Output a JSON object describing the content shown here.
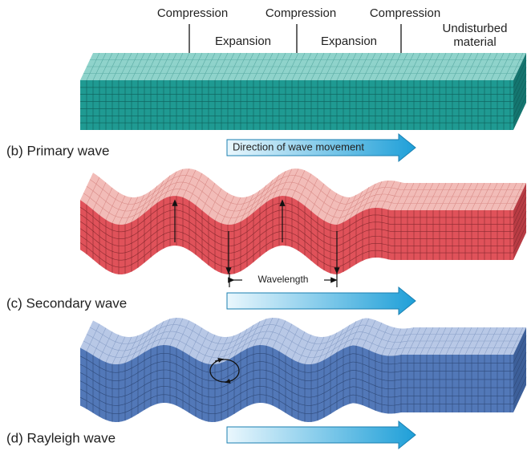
{
  "header": {
    "compression_labels": [
      "Compression",
      "Compression",
      "Compression"
    ],
    "expansion_labels": [
      "Expansion",
      "Expansion"
    ],
    "undisturbed_label": [
      "Undisturbed",
      "material"
    ]
  },
  "panels": [
    {
      "label": "(b) Primary wave",
      "arrow_label": "Direction of wave movement"
    },
    {
      "label": "(c) Secondary wave",
      "wavelength_label": "Wavelength"
    },
    {
      "label": "(d) Rayleigh wave"
    }
  ]
}
